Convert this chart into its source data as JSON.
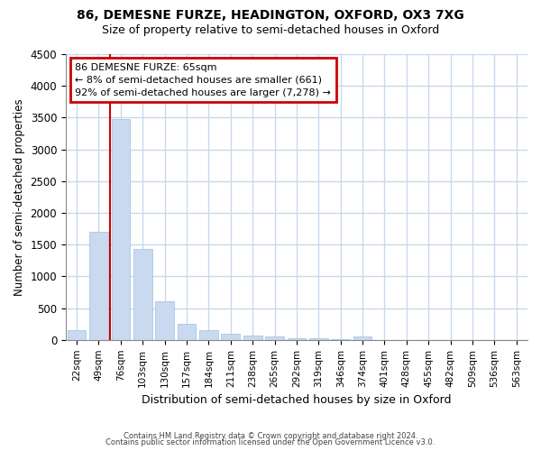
{
  "title1": "86, DEMESNE FURZE, HEADINGTON, OXFORD, OX3 7XG",
  "title2": "Size of property relative to semi-detached houses in Oxford",
  "xlabel": "Distribution of semi-detached houses by size in Oxford",
  "ylabel": "Number of semi-detached properties",
  "categories": [
    "22sqm",
    "49sqm",
    "76sqm",
    "103sqm",
    "130sqm",
    "157sqm",
    "184sqm",
    "211sqm",
    "238sqm",
    "265sqm",
    "292sqm",
    "319sqm",
    "346sqm",
    "374sqm",
    "401sqm",
    "428sqm",
    "455sqm",
    "482sqm",
    "509sqm",
    "536sqm",
    "563sqm"
  ],
  "values": [
    150,
    1700,
    3480,
    1430,
    610,
    260,
    160,
    90,
    70,
    50,
    30,
    20,
    10,
    50,
    0,
    0,
    0,
    0,
    0,
    0,
    0
  ],
  "bar_color": "#c9d9ef",
  "bar_edge_color": "#9fbfdf",
  "pct_smaller": "8%",
  "count_smaller": 661,
  "pct_larger": "92%",
  "count_larger": 7278,
  "annotation_box_color": "#cc0000",
  "vline_color": "#cc0000",
  "vline_x": 2.0,
  "ylim": [
    0,
    4500
  ],
  "background_color": "#ffffff",
  "grid_color": "#c8d8ee",
  "footer1": "Contains HM Land Registry data © Crown copyright and database right 2024.",
  "footer2": "Contains public sector information licensed under the Open Government Licence v3.0."
}
